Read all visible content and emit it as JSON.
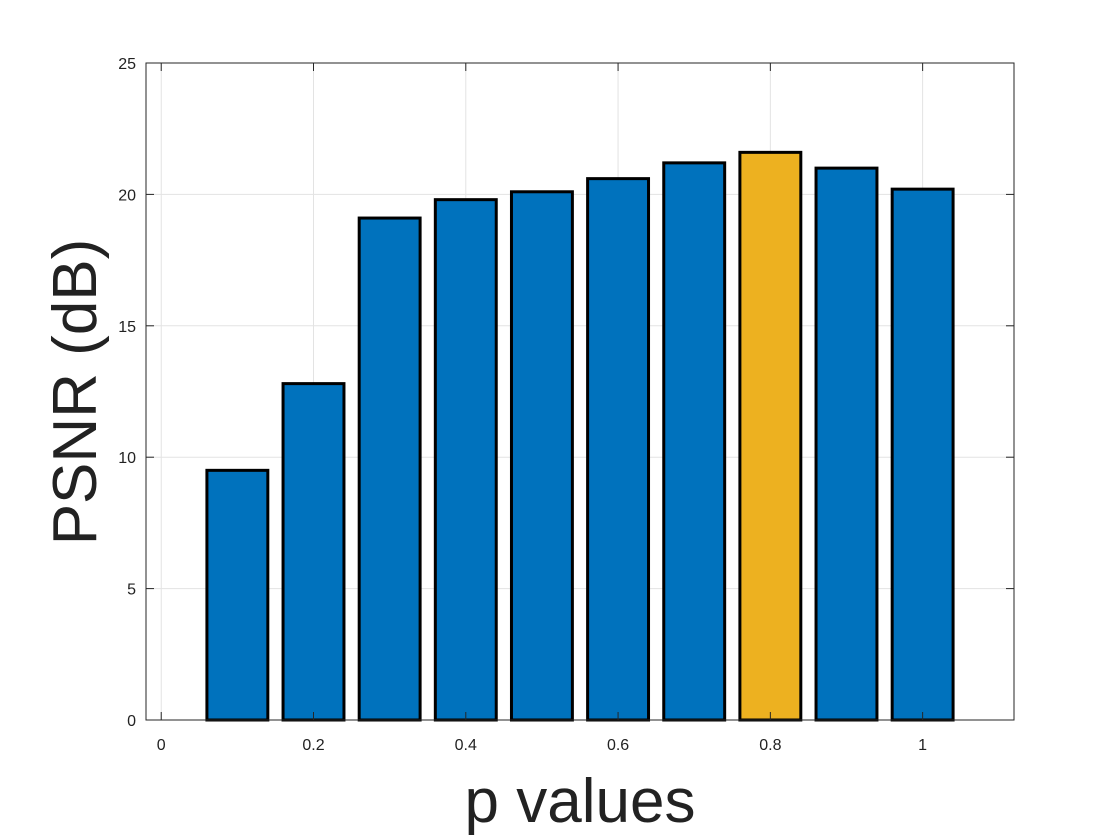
{
  "chart_data": {
    "type": "bar",
    "title": "",
    "xlabel": "p values",
    "ylabel": "PSNR (dB)",
    "x": [
      0.1,
      0.2,
      0.3,
      0.4,
      0.5,
      0.6,
      0.7,
      0.8,
      0.9,
      1.0
    ],
    "values": [
      9.5,
      12.8,
      19.1,
      19.8,
      20.1,
      20.6,
      21.2,
      21.6,
      21.0,
      20.2
    ],
    "highlight_index": 7,
    "xlim": [
      -0.02,
      1.12
    ],
    "ylim": [
      0,
      25
    ],
    "xticks": [
      0,
      0.2,
      0.4,
      0.6,
      0.8,
      1
    ],
    "xtick_labels": [
      "0",
      "0.2",
      "0.4",
      "0.6",
      "0.8",
      "1"
    ],
    "yticks": [
      0,
      5,
      10,
      15,
      20,
      25
    ],
    "ytick_labels": [
      "0",
      "5",
      "10",
      "15",
      "20",
      "25"
    ],
    "grid": true,
    "legend": "none",
    "bar_color": "#0072BD",
    "highlight_color": "#EDB120",
    "edge_color": "#000000"
  }
}
